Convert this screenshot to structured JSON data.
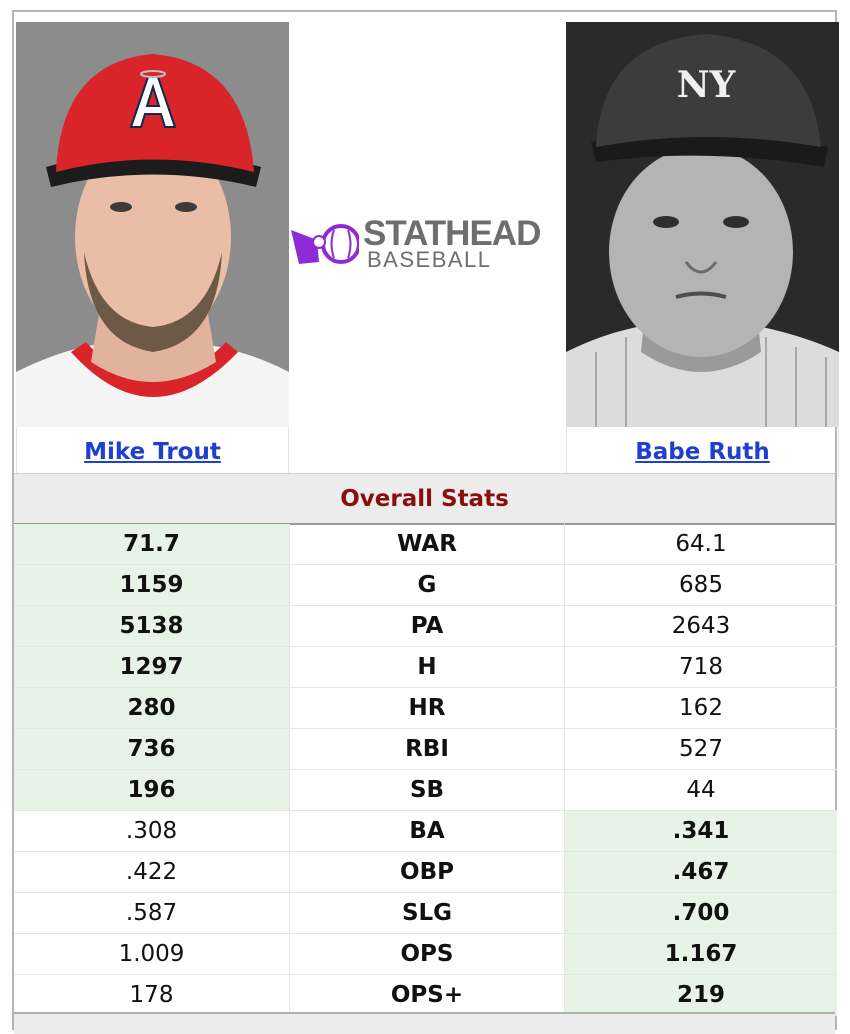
{
  "players": [
    {
      "name": "Mike Trout"
    },
    {
      "name": "Babe Ruth"
    }
  ],
  "logo": {
    "line1": "STATHEAD",
    "line2": "BASEBALL"
  },
  "section_title": "Overall Stats",
  "stats": [
    {
      "stat": "WAR",
      "p1": "71.7",
      "p2": "64.1",
      "leader": "p1"
    },
    {
      "stat": "G",
      "p1": "1159",
      "p2": "685",
      "leader": "p1"
    },
    {
      "stat": "PA",
      "p1": "5138",
      "p2": "2643",
      "leader": "p1"
    },
    {
      "stat": "H",
      "p1": "1297",
      "p2": "718",
      "leader": "p1"
    },
    {
      "stat": "HR",
      "p1": "280",
      "p2": "162",
      "leader": "p1"
    },
    {
      "stat": "RBI",
      "p1": "736",
      "p2": "527",
      "leader": "p1"
    },
    {
      "stat": "SB",
      "p1": "196",
      "p2": "44",
      "leader": "p1"
    },
    {
      "stat": "BA",
      "p1": ".308",
      "p2": ".341",
      "leader": "p2"
    },
    {
      "stat": "OBP",
      "p1": ".422",
      "p2": ".467",
      "leader": "p2"
    },
    {
      "stat": "SLG",
      "p1": ".587",
      "p2": ".700",
      "leader": "p2"
    },
    {
      "stat": "OPS",
      "p1": "1.009",
      "p2": "1.167",
      "leader": "p2"
    },
    {
      "stat": "OPS+",
      "p1": "178",
      "p2": "219",
      "leader": "p2"
    }
  ],
  "colors": {
    "leader_bg": "#e8f3e8",
    "header_text": "#8a0e0e",
    "link": "#1f3fd0",
    "logo_purple": "#8e2bd6"
  }
}
